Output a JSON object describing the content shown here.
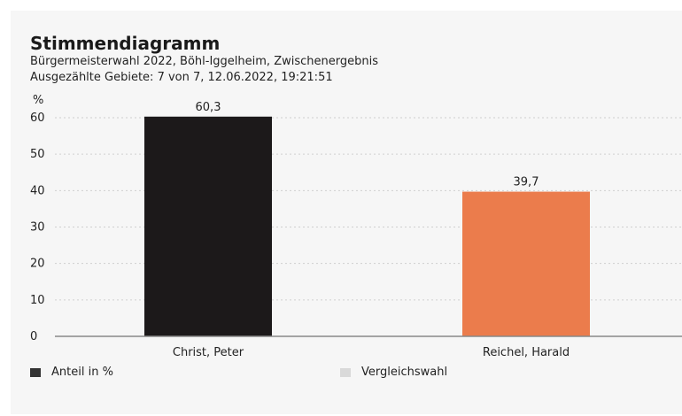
{
  "title": "Stimmendiagramm",
  "subtitle": "Bürgermeisterwahl 2022, Böhl-Iggelheim, Zwischenergebnis",
  "status": "Ausgezählte Gebiete: 7 von 7, 12.06.2022, 19:21:51",
  "legend": [
    {
      "label": "Anteil in %",
      "color": "#333333"
    },
    {
      "label": "Vergleichswahl",
      "color": "#d9d9d9"
    }
  ],
  "chart_data": {
    "type": "bar",
    "title": "Stimmendiagramm",
    "ylabel": "%",
    "ylim": [
      0,
      60
    ],
    "yticks": [
      0,
      10,
      20,
      30,
      40,
      50,
      60
    ],
    "categories": [
      "Christ, Peter",
      "Reichel, Harald"
    ],
    "values": [
      60.3,
      39.7
    ],
    "value_labels": [
      "60,3",
      "39,7"
    ],
    "bar_colors": [
      "#1c191a",
      "#eb7c4c"
    ],
    "grid": true,
    "legend_position": "bottom-left"
  }
}
